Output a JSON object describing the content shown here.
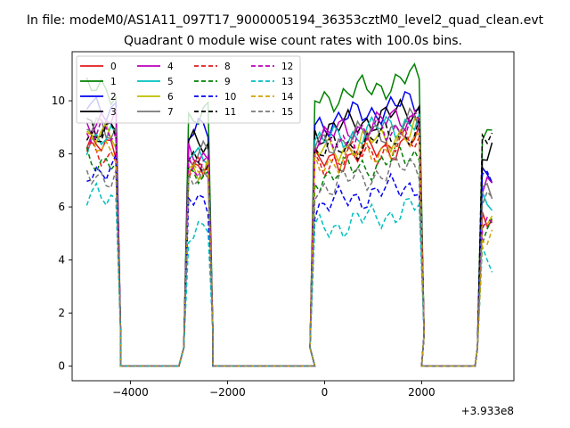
{
  "suptitle": "In file: modeM0/AS1A11_097T17_9000005194_36353cztM0_level2_quad_clean.evt",
  "chart_data": {
    "type": "line",
    "title": "Quadrant 0 module wise count rates with 100.0s bins.",
    "xlabel": "",
    "ylabel": "",
    "offset_text": "+3.933e8",
    "xlim": [
      -5200,
      3900
    ],
    "ylim": [
      -0.55,
      11.85
    ],
    "xticks": [
      -4000,
      -2000,
      0,
      2000
    ],
    "xtick_labels": [
      "−4000",
      "−2000",
      "0",
      "2000"
    ],
    "yticks": [
      0,
      2,
      4,
      6,
      8,
      10
    ],
    "ytick_labels": [
      "0",
      "2",
      "4",
      "6",
      "8",
      "10"
    ],
    "grid": false,
    "legend_position": "top-left",
    "legend_columns": 4,
    "segments": [
      {
        "start": -4900,
        "end": -4300
      },
      {
        "start": -2800,
        "end": -2400
      },
      {
        "start": -200,
        "end": 1950
      },
      {
        "start": 3250,
        "end": 3450
      }
    ],
    "zero_gaps": [
      [
        -4200,
        -3000
      ],
      [
        -2300,
        -200
      ],
      [
        2000,
        3100
      ]
    ],
    "series": [
      {
        "name": "0",
        "color": "#e31a1c",
        "style": "solid",
        "levels": [
          8.2,
          7.6,
          7.9,
          5.6
        ]
      },
      {
        "name": "1",
        "color": "#008000",
        "style": "solid",
        "levels": [
          10.4,
          9.4,
          10.3,
          8.9
        ]
      },
      {
        "name": "2",
        "color": "#0000ee",
        "style": "solid",
        "levels": [
          9.8,
          8.8,
          9.4,
          7.4
        ]
      },
      {
        "name": "3",
        "color": "#000000",
        "style": "solid",
        "levels": [
          9.1,
          8.3,
          9.1,
          8.1
        ]
      },
      {
        "name": "4",
        "color": "#bb00bb",
        "style": "solid",
        "levels": [
          9.3,
          7.9,
          8.9,
          6.6
        ]
      },
      {
        "name": "5",
        "color": "#00bfbf",
        "style": "solid",
        "levels": [
          8.5,
          8.1,
          8.7,
          6.0
        ]
      },
      {
        "name": "6",
        "color": "#bfbf00",
        "style": "solid",
        "levels": [
          8.6,
          7.5,
          8.3,
          5.4
        ]
      },
      {
        "name": "7",
        "color": "#777777",
        "style": "solid",
        "levels": [
          8.9,
          8.0,
          8.6,
          6.7
        ]
      },
      {
        "name": "8",
        "color": "#e31a1c",
        "style": "dashed",
        "levels": [
          8.0,
          7.4,
          7.9,
          5.8
        ]
      },
      {
        "name": "9",
        "color": "#008000",
        "style": "dashed",
        "levels": [
          7.8,
          7.0,
          7.4,
          5.2
        ]
      },
      {
        "name": "10",
        "color": "#0000ee",
        "style": "dashed",
        "levels": [
          7.4,
          6.2,
          6.3,
          7.0
        ]
      },
      {
        "name": "11",
        "color": "#000000",
        "style": "dashed",
        "levels": [
          8.7,
          7.8,
          8.3,
          8.5
        ]
      },
      {
        "name": "12",
        "color": "#bb00bb",
        "style": "dashed",
        "levels": [
          8.7,
          7.7,
          8.6,
          5.2
        ]
      },
      {
        "name": "13",
        "color": "#00bfbf",
        "style": "dashed",
        "levels": [
          6.3,
          5.2,
          5.4,
          4.1
        ]
      },
      {
        "name": "14",
        "color": "#d4a000",
        "style": "dashed",
        "levels": [
          8.3,
          7.3,
          7.9,
          5.1
        ]
      },
      {
        "name": "15",
        "color": "#777777",
        "style": "dashed",
        "levels": [
          7.2,
          6.9,
          7.0,
          6.4
        ]
      }
    ]
  }
}
